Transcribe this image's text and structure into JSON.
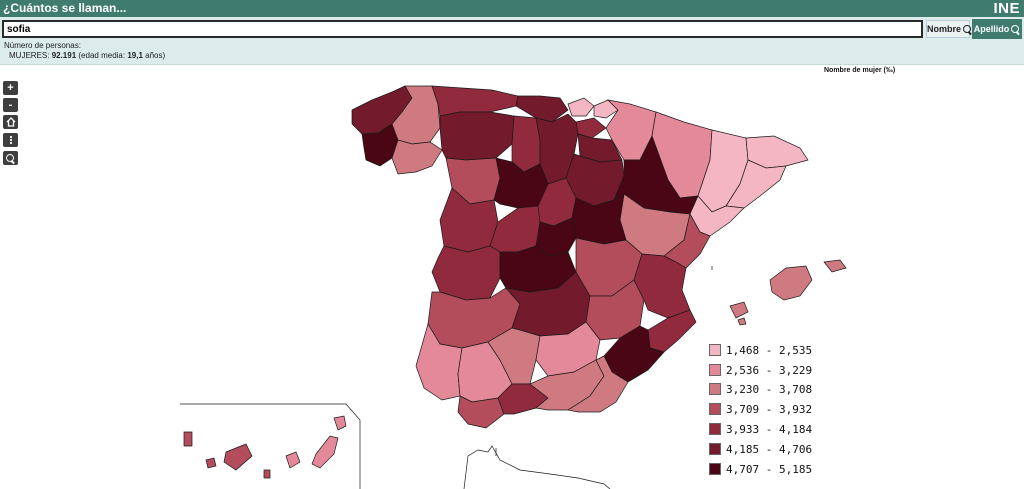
{
  "header": {
    "title": "¿Cuántos se llaman...",
    "logo": "INE"
  },
  "search": {
    "value": "sofia",
    "nombre_label": "Nombre",
    "apellido_label": "Apellido"
  },
  "info": {
    "label": "Número de personas:",
    "gender": "MUJERES:",
    "count": "92.191",
    "age_prefix": "(edad media:",
    "age_value": "19,1",
    "age_suffix": "años)"
  },
  "map": {
    "title": "Nombre de mujer (‰)",
    "controls": [
      "zoom-in",
      "zoom-out",
      "home",
      "more",
      "search"
    ],
    "legend": [
      {
        "label": "1,468 - 2,535",
        "color": "#f4b6c2"
      },
      {
        "label": "2,536 - 3,229",
        "color": "#e3899a"
      },
      {
        "label": "3,230 - 3,708",
        "color": "#cf7a80"
      },
      {
        "label": "3,709 - 3,932",
        "color": "#b34c5b"
      },
      {
        "label": "3,933 - 4,184",
        "color": "#922a3e"
      },
      {
        "label": "4,185 - 4,706",
        "color": "#731a2d"
      },
      {
        "label": "4,707 - 5,185",
        "color": "#4a0614"
      }
    ]
  }
}
